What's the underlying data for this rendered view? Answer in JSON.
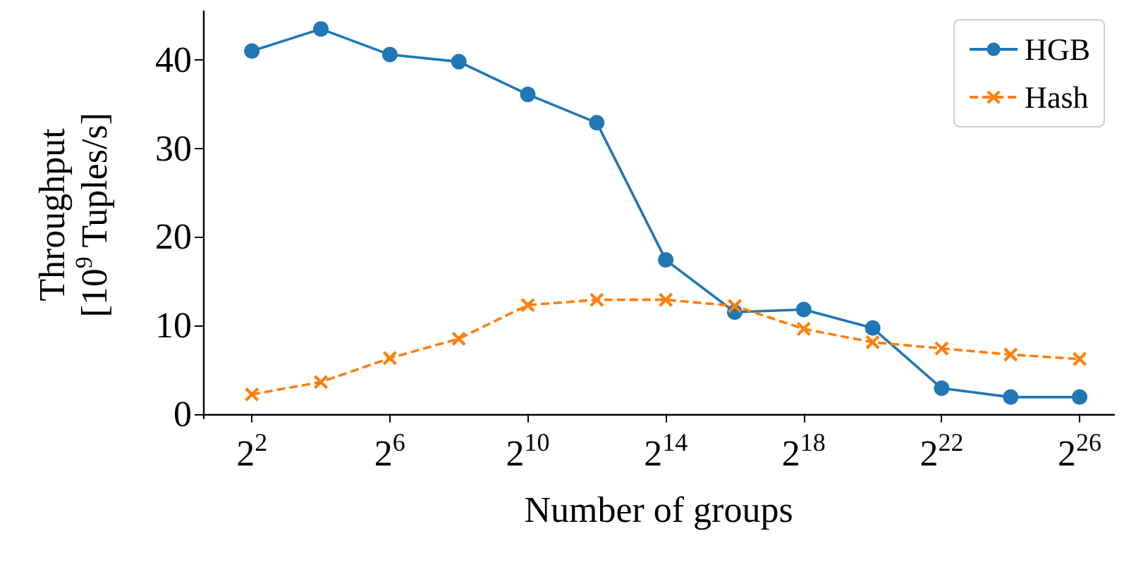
{
  "chart_data": {
    "type": "line",
    "xlabel": "Number of groups",
    "ylabel": "Throughput\n[10$^{9}$ Tuples/s]",
    "x": [
      4,
      16,
      64,
      256,
      1024,
      4096,
      16384,
      65536,
      262144,
      1048576,
      4194304,
      16777216,
      67108864
    ],
    "series": [
      {
        "name": "HGB",
        "color": "#1f77b4",
        "marker": "circle",
        "line_style": "solid",
        "values": [
          41,
          43.5,
          40.6,
          39.8,
          36.1,
          32.9,
          17.4,
          11.5,
          11.8,
          9.7,
          2.9,
          1.9,
          1.9
        ]
      },
      {
        "name": "Hash",
        "color": "#ff7f0e",
        "marker": "cross",
        "line_style": "dashed",
        "values": [
          2.2,
          3.6,
          6.3,
          8.5,
          12.3,
          12.9,
          12.9,
          12.2,
          9.6,
          8.1,
          7.4,
          6.7,
          6.2
        ]
      }
    ],
    "log": "x",
    "xlim": [
      1.5,
      134217728
    ],
    "xticks": [
      {
        "value": 4,
        "label": "2$^{2}$"
      },
      {
        "value": 64,
        "label": "2$^{6}$"
      },
      {
        "value": 1024,
        "label": "2$^{10}$"
      },
      {
        "value": 16384,
        "label": "2$^{14}$"
      },
      {
        "value": 262144,
        "label": "2$^{18}$"
      },
      {
        "value": 4194304,
        "label": "2$^{22}$"
      },
      {
        "value": 67108864,
        "label": "2$^{26}$"
      }
    ],
    "ylim": [
      -0.5,
      45.5
    ],
    "yticks": [
      0,
      10,
      20,
      30,
      40
    ],
    "grid": false,
    "legend": "top right"
  }
}
